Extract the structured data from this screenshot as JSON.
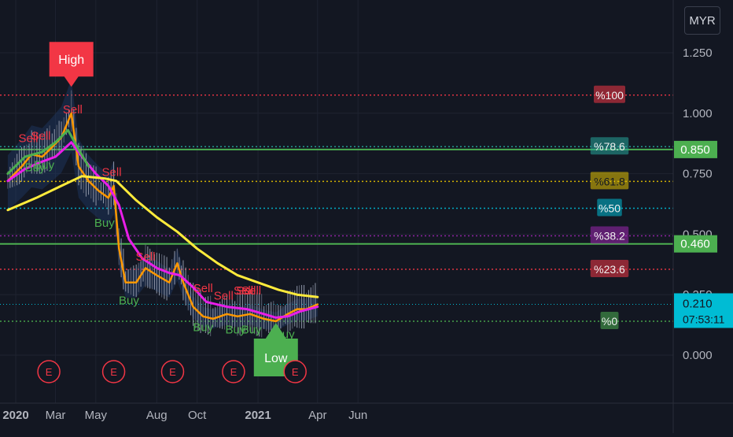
{
  "currency": "MYR",
  "chart_data": {
    "type": "candlestick",
    "timeframe": "daily",
    "x_ticks": [
      "2020",
      "Mar",
      "May",
      "Aug",
      "Oct",
      "2021",
      "Apr",
      "Jun"
    ],
    "y_ticks": [
      "1.250",
      "1.000",
      "0.750",
      "0.500",
      "0.250",
      "0.000"
    ],
    "ylim": [
      -0.1,
      1.3
    ],
    "grid": true,
    "last_price": {
      "label": "0.210",
      "countdown": "07:53:11",
      "value": 0.21,
      "color": "#00bcd4"
    },
    "horizontal_levels": [
      {
        "label": "0.850",
        "value": 0.85,
        "color": "#4caf50"
      },
      {
        "label": "0.460",
        "value": 0.46,
        "color": "#4caf50"
      }
    ],
    "fibonacci_levels": [
      {
        "label": "%100",
        "value": 1.075,
        "color": "#f23645"
      },
      {
        "label": "%78.6",
        "value": 0.862,
        "color": "#26a69a"
      },
      {
        "label": "%61.8",
        "value": 0.718,
        "color": "#e6c200"
      },
      {
        "label": "%50",
        "value": 0.607,
        "color": "#00bcd4"
      },
      {
        "label": "%38.2",
        "value": 0.493,
        "color": "#9c27b0"
      },
      {
        "label": "%23.6",
        "value": 0.355,
        "color": "#f23645"
      },
      {
        "label": "%0",
        "value": 0.14,
        "color": "#4caf50"
      }
    ],
    "markers": {
      "high": {
        "label": "High",
        "date": "2020-03-25",
        "value": 1.08,
        "color": "#f23645"
      },
      "low": {
        "label": "Low",
        "date": "2021-01-28",
        "value": 0.14,
        "color": "#4caf50"
      }
    },
    "earnings_label": "E",
    "earnings_dates": [
      "2020-02-20",
      "2020-05-28",
      "2020-08-25",
      "2020-11-25",
      "2021-02-26"
    ],
    "signals": [
      {
        "type": "Sell",
        "date": "2020-01-20",
        "value": 0.88
      },
      {
        "type": "Buy",
        "date": "2020-01-30",
        "value": 0.76
      },
      {
        "type": "Sell",
        "date": "2020-02-08",
        "value": 0.89
      },
      {
        "type": "Buy",
        "date": "2020-02-13",
        "value": 0.77
      },
      {
        "type": "Sell",
        "date": "2020-03-27",
        "value": 1.0
      },
      {
        "type": "Buy",
        "date": "2020-05-14",
        "value": 0.53
      },
      {
        "type": "Sell",
        "date": "2020-05-25",
        "value": 0.74
      },
      {
        "type": "Buy",
        "date": "2020-06-20",
        "value": 0.21
      },
      {
        "type": "Sell",
        "date": "2020-07-15",
        "value": 0.39
      },
      {
        "type": "Sell",
        "date": "2020-10-10",
        "value": 0.26
      },
      {
        "type": "Buy",
        "date": "2020-10-10",
        "value": 0.1
      },
      {
        "type": "Sell",
        "date": "2020-11-10",
        "value": 0.23
      },
      {
        "type": "Buy",
        "date": "2020-11-28",
        "value": 0.09
      },
      {
        "type": "Sell",
        "date": "2020-12-10",
        "value": 0.25
      },
      {
        "type": "Sell",
        "date": "2020-12-14",
        "value": 0.25
      },
      {
        "type": "Sell",
        "date": "2020-12-22",
        "value": 0.25
      },
      {
        "type": "Buy",
        "date": "2020-12-22",
        "value": 0.09
      },
      {
        "type": "Buy",
        "date": "2021-02-10",
        "value": 0.07
      }
    ],
    "series": [
      {
        "role": "price",
        "color": "#ff9800",
        "x": [
          "2019-12-20",
          "2020-01-10",
          "2020-01-25",
          "2020-02-10",
          "2020-02-25",
          "2020-03-10",
          "2020-03-25",
          "2020-04-05",
          "2020-04-20",
          "2020-05-05",
          "2020-05-20",
          "2020-05-28",
          "2020-06-05",
          "2020-06-15",
          "2020-07-01",
          "2020-07-15",
          "2020-08-01",
          "2020-08-20",
          "2020-09-01",
          "2020-09-10",
          "2020-09-25",
          "2020-10-10",
          "2020-10-25",
          "2020-11-15",
          "2020-12-01",
          "2020-12-20",
          "2021-01-10",
          "2021-01-28",
          "2021-02-15",
          "2021-03-01",
          "2021-03-15",
          "2021-04-01"
        ],
        "y": [
          0.72,
          0.78,
          0.83,
          0.82,
          0.86,
          0.9,
          1.0,
          0.78,
          0.72,
          0.68,
          0.65,
          0.7,
          0.44,
          0.3,
          0.3,
          0.36,
          0.33,
          0.3,
          0.38,
          0.3,
          0.2,
          0.16,
          0.15,
          0.17,
          0.16,
          0.17,
          0.15,
          0.14,
          0.17,
          0.19,
          0.19,
          0.21
        ]
      },
      {
        "role": "moving-average-fast",
        "color": "#e91ee8",
        "x": [
          "2019-12-20",
          "2020-01-15",
          "2020-02-10",
          "2020-03-01",
          "2020-03-25",
          "2020-04-10",
          "2020-05-01",
          "2020-05-20",
          "2020-06-05",
          "2020-06-20",
          "2020-07-10",
          "2020-08-01",
          "2020-08-20",
          "2020-09-05",
          "2020-09-25",
          "2020-10-15",
          "2020-11-15",
          "2020-12-15",
          "2021-01-10",
          "2021-01-28",
          "2021-02-15",
          "2021-03-05",
          "2021-04-01"
        ],
        "y": [
          0.72,
          0.77,
          0.8,
          0.82,
          0.88,
          0.82,
          0.75,
          0.7,
          0.62,
          0.48,
          0.4,
          0.36,
          0.34,
          0.33,
          0.28,
          0.22,
          0.2,
          0.19,
          0.17,
          0.155,
          0.16,
          0.18,
          0.2
        ]
      },
      {
        "role": "moving-average-slow",
        "color": "#ffeb3b",
        "x": [
          "2019-12-20",
          "2020-02-01",
          "2020-03-10",
          "2020-04-10",
          "2020-05-15",
          "2020-06-01",
          "2020-07-01",
          "2020-08-01",
          "2020-09-01",
          "2020-10-01",
          "2020-11-01",
          "2020-12-01",
          "2021-01-01",
          "2021-02-01",
          "2021-03-01",
          "2021-04-01"
        ],
        "y": [
          0.6,
          0.65,
          0.7,
          0.74,
          0.73,
          0.72,
          0.64,
          0.57,
          0.51,
          0.44,
          0.38,
          0.33,
          0.3,
          0.27,
          0.25,
          0.24
        ]
      },
      {
        "role": "moving-average-green",
        "color": "#4caf50",
        "x": [
          "2019-12-20",
          "2020-01-15",
          "2020-02-10",
          "2020-03-01",
          "2020-03-20",
          "2020-04-05",
          "2020-04-20"
        ],
        "y": [
          0.75,
          0.82,
          0.84,
          0.88,
          0.93,
          0.85,
          0.78
        ]
      }
    ]
  }
}
